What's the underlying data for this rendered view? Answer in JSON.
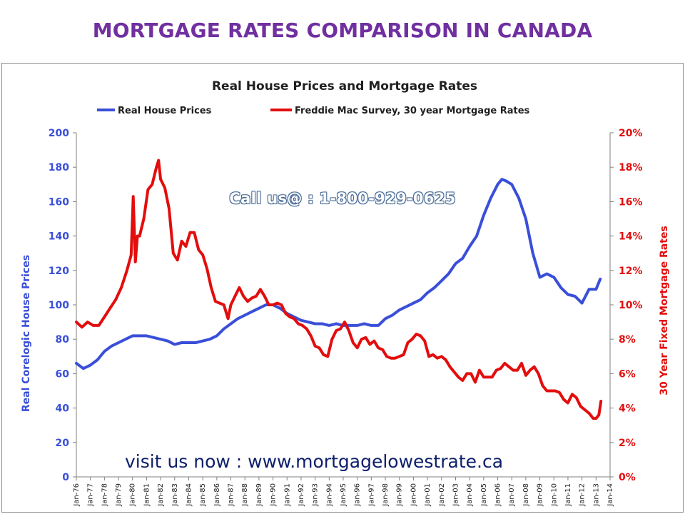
{
  "page": {
    "heading": "MORTGAGE RATES COMPARISON IN CANADA",
    "call_text": "Call us@ : 1-800-929-0625",
    "visit_text": "visit us now : www.mortgagelowestrate.ca"
  },
  "chart_data": {
    "type": "line",
    "title": "Real House Prices and Mortgage Rates",
    "ylabel": "Real Corelogic House Prices",
    "y2label": "30 Year Fixed Mortgage Rates",
    "ylim": [
      0,
      200
    ],
    "y2lim": [
      0,
      20
    ],
    "yticks": [
      "0",
      "20",
      "40",
      "60",
      "80",
      "100",
      "120",
      "140",
      "160",
      "180",
      "200"
    ],
    "y2ticks": [
      "0%",
      "2%",
      "4%",
      "6%",
      "8%",
      "10%",
      "12%",
      "14%",
      "16%",
      "18%",
      "20%"
    ],
    "xlim": [
      1976,
      2014
    ],
    "xticks": [
      "Jan-76",
      "Jan-77",
      "Jan-78",
      "Jan-79",
      "Jan-80",
      "Jan-81",
      "Jan-82",
      "Jan-83",
      "Jan-84",
      "Jan-85",
      "Jan-86",
      "Jan-87",
      "Jan-88",
      "Jan-89",
      "Jan-90",
      "Jan-91",
      "Jan-92",
      "Jan-93",
      "Jan-94",
      "Jan-95",
      "Jan-96",
      "Jan-97",
      "Jan-98",
      "Jan-99",
      "Jan-00",
      "Jan-01",
      "Jan-02",
      "Jan-03",
      "Jan-04",
      "Jan-05",
      "Jan-06",
      "Jan-07",
      "Jan-08",
      "Jan-09",
      "Jan-10",
      "Jan-11",
      "Jan-12",
      "Jan-13",
      "Jan-14"
    ],
    "grid": false,
    "legend_position": "top",
    "series": [
      {
        "name": "Real House Prices",
        "axis": "left",
        "color": "#3a4fd8",
        "x": [
          1976.0,
          1976.5,
          1977.0,
          1977.5,
          1978.0,
          1978.5,
          1979.0,
          1979.5,
          1980.0,
          1980.5,
          1981.0,
          1981.5,
          1982.0,
          1982.5,
          1983.0,
          1983.5,
          1984.0,
          1984.5,
          1985.0,
          1985.5,
          1986.0,
          1986.5,
          1987.0,
          1987.5,
          1988.0,
          1988.5,
          1989.0,
          1989.5,
          1990.0,
          1990.5,
          1991.0,
          1991.5,
          1992.0,
          1992.5,
          1993.0,
          1993.5,
          1994.0,
          1994.5,
          1995.0,
          1995.5,
          1996.0,
          1996.5,
          1997.0,
          1997.5,
          1998.0,
          1998.5,
          1999.0,
          1999.5,
          2000.0,
          2000.5,
          2001.0,
          2001.5,
          2002.0,
          2002.5,
          2003.0,
          2003.5,
          2004.0,
          2004.5,
          2005.0,
          2005.5,
          2006.0,
          2006.3,
          2006.6,
          2007.0,
          2007.5,
          2008.0,
          2008.5,
          2009.0,
          2009.5,
          2010.0,
          2010.5,
          2011.0,
          2011.5,
          2012.0,
          2012.5,
          2013.0,
          2013.3
        ],
        "y": [
          66,
          63,
          65,
          68,
          73,
          76,
          78,
          80,
          82,
          82,
          82,
          81,
          80,
          79,
          77,
          78,
          78,
          78,
          79,
          80,
          82,
          86,
          89,
          92,
          94,
          96,
          98,
          100,
          100,
          98,
          95,
          93,
          91,
          90,
          89,
          89,
          88,
          89,
          88,
          88,
          88,
          89,
          88,
          88,
          92,
          94,
          97,
          99,
          101,
          103,
          107,
          110,
          114,
          118,
          124,
          127,
          134,
          140,
          152,
          162,
          170,
          173,
          172,
          170,
          162,
          150,
          130,
          116,
          118,
          116,
          110,
          106,
          105,
          101,
          109,
          109,
          115
        ]
      },
      {
        "name": "Freddie Mac Survey, 30 year Mortgage Rates",
        "axis": "right",
        "color": "#e30d0d",
        "x": [
          1976.0,
          1976.4,
          1976.8,
          1977.2,
          1977.6,
          1978.0,
          1978.4,
          1978.8,
          1979.2,
          1979.6,
          1979.9,
          1980.05,
          1980.2,
          1980.35,
          1980.5,
          1980.8,
          1981.1,
          1981.4,
          1981.7,
          1981.85,
          1982.0,
          1982.3,
          1982.6,
          1982.9,
          1983.2,
          1983.5,
          1983.8,
          1984.1,
          1984.4,
          1984.7,
          1985.0,
          1985.3,
          1985.6,
          1985.9,
          1986.2,
          1986.5,
          1986.8,
          1987.0,
          1987.3,
          1987.6,
          1987.9,
          1988.2,
          1988.5,
          1988.8,
          1989.1,
          1989.4,
          1989.7,
          1990.0,
          1990.3,
          1990.6,
          1990.9,
          1991.2,
          1991.5,
          1991.8,
          1992.1,
          1992.4,
          1992.7,
          1993.0,
          1993.3,
          1993.6,
          1993.9,
          1994.2,
          1994.5,
          1994.8,
          1995.1,
          1995.4,
          1995.7,
          1996.0,
          1996.3,
          1996.6,
          1996.9,
          1997.2,
          1997.5,
          1997.8,
          1998.1,
          1998.4,
          1998.7,
          1999.0,
          1999.3,
          1999.6,
          1999.9,
          2000.2,
          2000.5,
          2000.8,
          2001.1,
          2001.4,
          2001.7,
          2002.0,
          2002.3,
          2002.6,
          2002.9,
          2003.2,
          2003.5,
          2003.8,
          2004.1,
          2004.4,
          2004.7,
          2005.0,
          2005.3,
          2005.6,
          2005.9,
          2006.2,
          2006.5,
          2006.8,
          2007.1,
          2007.4,
          2007.7,
          2008.0,
          2008.3,
          2008.6,
          2008.9,
          2009.2,
          2009.5,
          2009.8,
          2010.1,
          2010.4,
          2010.7,
          2011.0,
          2011.3,
          2011.6,
          2011.9,
          2012.2,
          2012.5,
          2012.8,
          2013.0,
          2013.2,
          2013.35
        ],
        "y": [
          9.0,
          8.7,
          9.0,
          8.8,
          8.8,
          9.3,
          9.8,
          10.3,
          11.0,
          12.0,
          12.9,
          16.3,
          12.5,
          14.0,
          14.0,
          15.0,
          16.7,
          17.0,
          18.0,
          18.4,
          17.3,
          16.8,
          15.6,
          13.0,
          12.6,
          13.7,
          13.4,
          14.2,
          14.2,
          13.2,
          12.9,
          12.1,
          11.0,
          10.2,
          10.1,
          10.0,
          9.2,
          10.0,
          10.5,
          11.0,
          10.5,
          10.2,
          10.4,
          10.5,
          10.9,
          10.5,
          10.0,
          10.0,
          10.1,
          10.0,
          9.5,
          9.3,
          9.2,
          8.9,
          8.8,
          8.6,
          8.2,
          7.6,
          7.5,
          7.1,
          7.0,
          8.0,
          8.5,
          8.6,
          9.0,
          8.5,
          7.8,
          7.5,
          8.0,
          8.1,
          7.7,
          7.9,
          7.5,
          7.4,
          7.0,
          6.9,
          6.9,
          7.0,
          7.1,
          7.8,
          8.0,
          8.3,
          8.2,
          7.9,
          7.0,
          7.1,
          6.9,
          7.0,
          6.8,
          6.4,
          6.1,
          5.8,
          5.6,
          6.0,
          6.0,
          5.5,
          6.2,
          5.8,
          5.8,
          5.8,
          6.2,
          6.3,
          6.6,
          6.4,
          6.2,
          6.2,
          6.6,
          5.9,
          6.2,
          6.4,
          6.0,
          5.3,
          5.0,
          5.0,
          5.0,
          4.9,
          4.5,
          4.3,
          4.8,
          4.6,
          4.1,
          3.9,
          3.7,
          3.4,
          3.4,
          3.6,
          4.4
        ]
      }
    ]
  }
}
